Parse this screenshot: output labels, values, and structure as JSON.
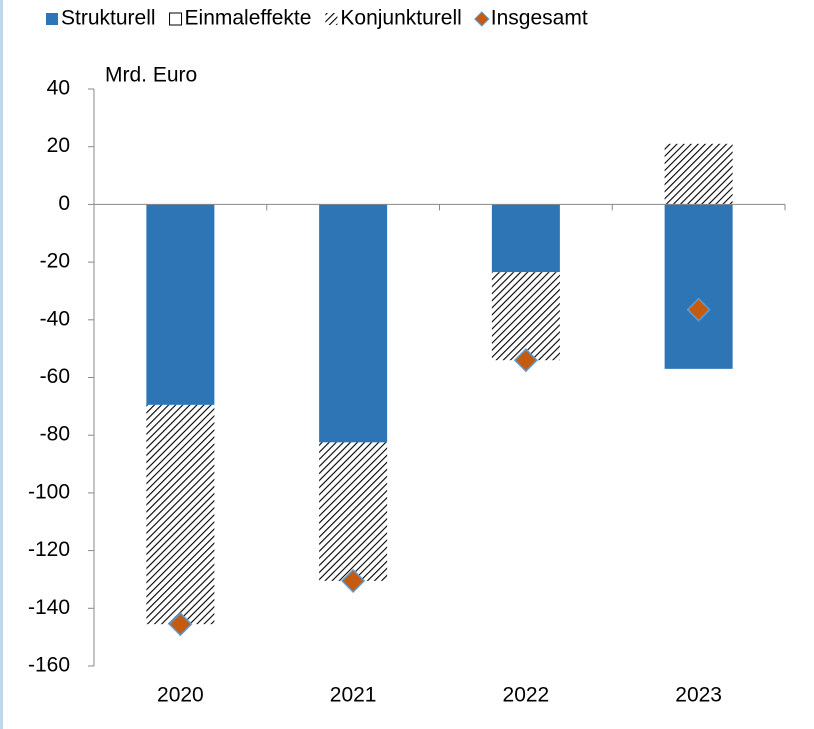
{
  "chart_data": {
    "type": "bar",
    "stacked": true,
    "y_label": "Mrd. Euro",
    "categories": [
      "2020",
      "2021",
      "2022",
      "2023"
    ],
    "series": [
      {
        "name": "Strukturell",
        "color": "#2e75b6",
        "values": [
          -69.5,
          -82.5,
          -23.5,
          -57
        ]
      },
      {
        "name": "Einmaleffekte",
        "color": "#ffffff",
        "values": [
          0,
          0,
          0,
          0
        ]
      },
      {
        "name": "Konjunkturell",
        "color": "#000000",
        "pattern": "hatch",
        "values": [
          -76,
          -48,
          -30.5,
          21
        ]
      },
      {
        "name": "Insgesamt",
        "color": "#c55a11",
        "type": "scatter",
        "marker": "diamond",
        "values": [
          -145.5,
          -130.5,
          -54,
          -36.5
        ]
      }
    ],
    "ylim": [
      -160,
      40
    ],
    "yticks": [
      -160,
      -140,
      -120,
      -100,
      -80,
      -60,
      -40,
      -20,
      0,
      20,
      40
    ],
    "grid": false,
    "legend": "top"
  }
}
